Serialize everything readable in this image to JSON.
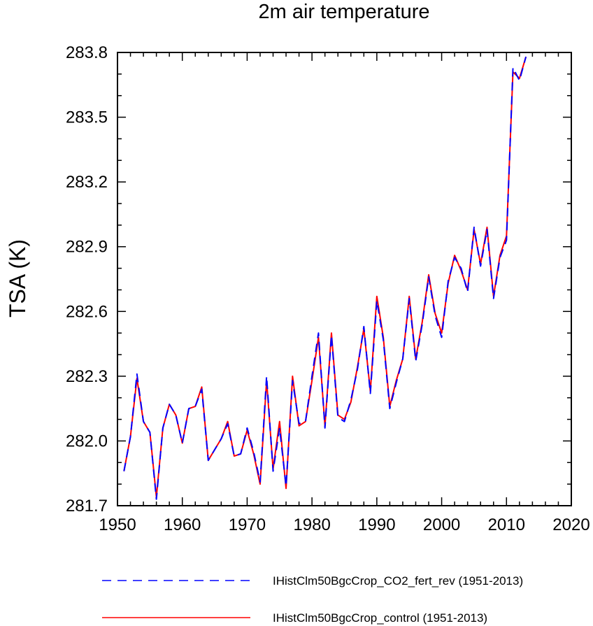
{
  "chart_data": {
    "type": "line",
    "title": "2m air temperature",
    "xlabel": "",
    "ylabel": "TSA  (K)",
    "xlim": [
      1950,
      2020
    ],
    "ylim": [
      281.7,
      283.8
    ],
    "xticks": [
      1950,
      1960,
      1970,
      1980,
      1990,
      2000,
      2010,
      2020
    ],
    "xtick_labels": [
      "1950",
      "1960",
      "1970",
      "1980",
      "1990",
      "2000",
      "2010",
      "2020"
    ],
    "yticks": [
      281.7,
      282.0,
      282.3,
      282.6,
      282.9,
      283.2,
      283.5,
      283.8
    ],
    "ytick_labels": [
      "281.7",
      "282.0",
      "282.3",
      "282.6",
      "282.9",
      "283.2",
      "283.5",
      "283.8"
    ],
    "legend_position": "bottom",
    "grid": false,
    "x": [
      1951,
      1952,
      1953,
      1954,
      1955,
      1956,
      1957,
      1958,
      1959,
      1960,
      1961,
      1962,
      1963,
      1964,
      1965,
      1966,
      1967,
      1968,
      1969,
      1970,
      1971,
      1972,
      1973,
      1974,
      1975,
      1976,
      1977,
      1978,
      1979,
      1980,
      1981,
      1982,
      1983,
      1984,
      1985,
      1986,
      1987,
      1988,
      1989,
      1990,
      1991,
      1992,
      1993,
      1994,
      1995,
      1996,
      1997,
      1998,
      1999,
      2000,
      2001,
      2002,
      2003,
      2004,
      2005,
      2006,
      2007,
      2008,
      2009,
      2010,
      2011,
      2012,
      2013
    ],
    "series": [
      {
        "name": "IHistClm50BgcCrop_CO2_fert_rev (1951-2013)",
        "color": "#0000ff",
        "dash": "dashed",
        "values": [
          281.86,
          282.02,
          282.31,
          282.09,
          282.04,
          281.73,
          282.06,
          282.17,
          282.12,
          281.99,
          282.15,
          282.16,
          282.24,
          281.91,
          281.96,
          282.01,
          282.08,
          281.93,
          281.94,
          282.06,
          281.95,
          281.81,
          282.3,
          281.86,
          282.06,
          281.79,
          282.28,
          282.08,
          282.09,
          282.3,
          282.5,
          282.06,
          282.49,
          282.11,
          282.09,
          282.19,
          282.33,
          282.53,
          282.22,
          282.65,
          282.47,
          282.15,
          282.27,
          282.38,
          282.66,
          282.37,
          282.54,
          282.76,
          282.58,
          282.48,
          282.74,
          282.85,
          282.8,
          282.69,
          282.99,
          282.81,
          282.98,
          282.66,
          282.85,
          282.93,
          283.73,
          283.67,
          283.78
        ]
      },
      {
        "name": "IHistClm50BgcCrop_control (1951-2013)",
        "color": "#ff0000",
        "dash": "solid",
        "values": [
          281.86,
          282.02,
          282.29,
          282.09,
          282.04,
          281.74,
          282.06,
          282.17,
          282.12,
          281.99,
          282.15,
          282.16,
          282.25,
          281.91,
          281.96,
          282.01,
          282.09,
          281.93,
          281.94,
          282.05,
          281.94,
          281.8,
          282.28,
          281.87,
          282.09,
          281.78,
          282.3,
          282.07,
          282.09,
          282.28,
          282.48,
          282.07,
          282.5,
          282.12,
          282.1,
          282.18,
          282.34,
          282.52,
          282.23,
          282.67,
          282.48,
          282.16,
          282.28,
          282.38,
          282.67,
          282.38,
          282.55,
          282.77,
          282.59,
          282.5,
          282.73,
          282.86,
          282.79,
          282.7,
          282.98,
          282.82,
          282.99,
          282.67,
          282.86,
          282.95,
          283.71,
          283.68,
          283.78
        ]
      }
    ]
  }
}
